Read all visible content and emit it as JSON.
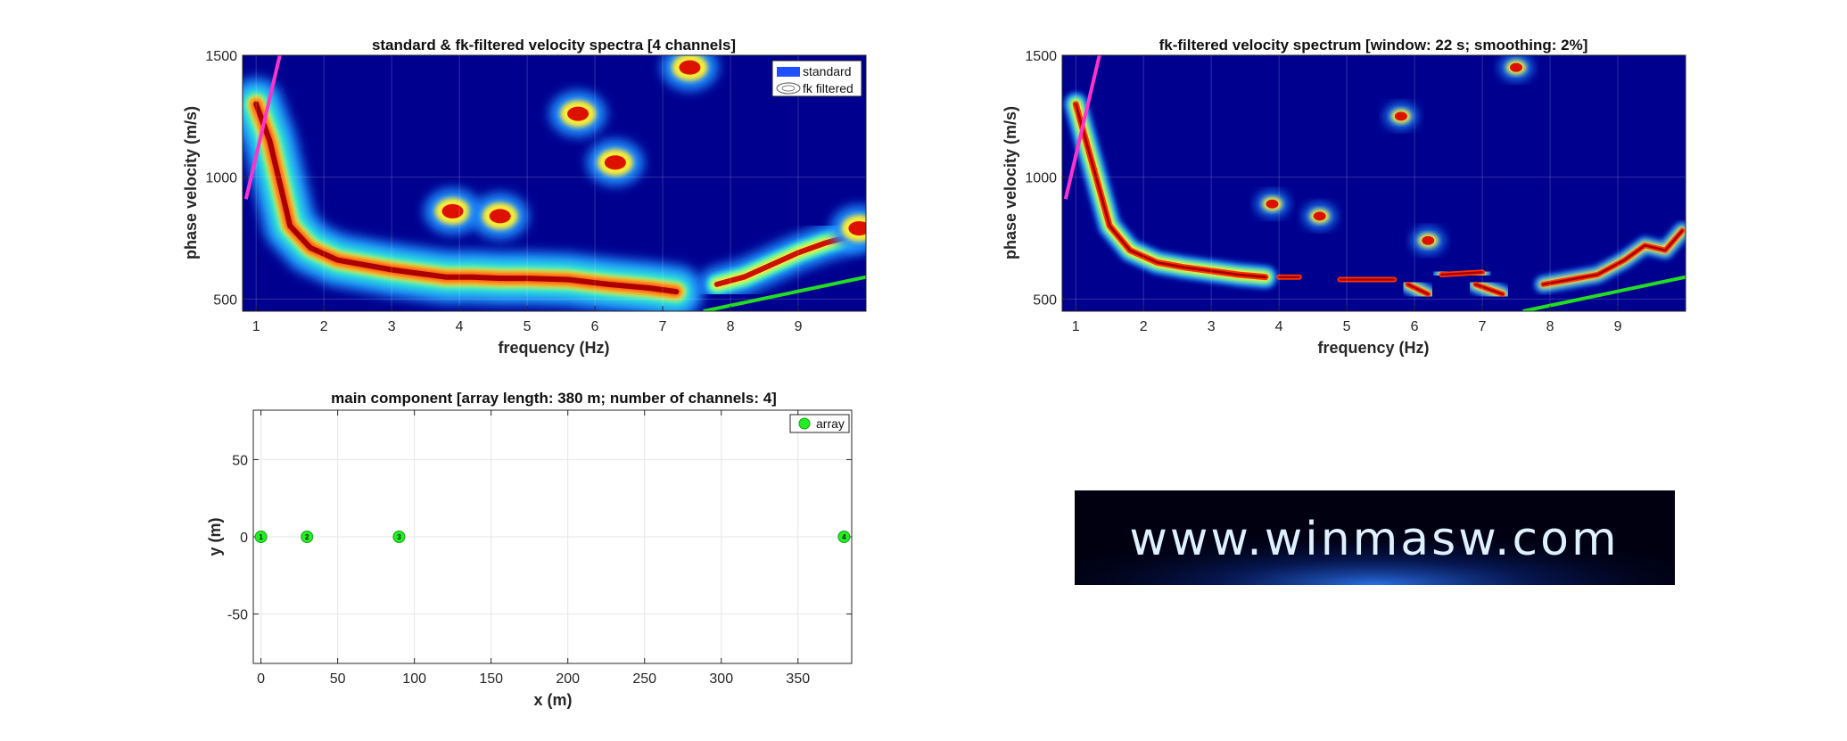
{
  "chart_data": [
    {
      "id": "spectra-standard",
      "type": "heatmap",
      "title": "standard & fk-filtered velocity spectra [4 channels]",
      "xlabel": "frequency (Hz)",
      "ylabel": "phase velocity (m/s)",
      "xlim": [
        0.8,
        10.0
      ],
      "ylim": [
        450,
        1500
      ],
      "xticks": [
        "1",
        "2",
        "3",
        "4",
        "5",
        "6",
        "7",
        "8",
        "9"
      ],
      "yticks": [
        "500",
        "1000",
        "1500"
      ],
      "grid": true,
      "legend": {
        "position": "top-right",
        "entries": [
          "standard",
          "fk filtered"
        ]
      },
      "dispersion_curve": {
        "freq": [
          1.0,
          1.2,
          1.5,
          1.8,
          2.2,
          2.6,
          3.0,
          3.4,
          3.8,
          4.2,
          4.6,
          5.0,
          5.6,
          6.2,
          6.8,
          7.2
        ],
        "velocity": [
          1300,
          1150,
          800,
          710,
          660,
          640,
          620,
          605,
          590,
          590,
          585,
          585,
          580,
          560,
          545,
          530
        ]
      },
      "higher_mode": {
        "freq": [
          7.8,
          8.2,
          8.6,
          9.0,
          9.4,
          9.8
        ],
        "velocity": [
          560,
          590,
          640,
          690,
          730,
          760
        ]
      },
      "patches": [
        {
          "freq": 3.9,
          "velocity": 860
        },
        {
          "freq": 4.6,
          "velocity": 840
        },
        {
          "freq": 5.75,
          "velocity": 1260
        },
        {
          "freq": 6.3,
          "velocity": 1060
        },
        {
          "freq": 7.4,
          "velocity": 1450
        },
        {
          "freq": 9.9,
          "velocity": 790
        }
      ],
      "lines": [
        {
          "color": "#ff33cc",
          "freq": [
            0.85,
            1.35
          ],
          "velocity": [
            910,
            1500
          ]
        },
        {
          "color": "#22dd22",
          "freq": [
            7.6,
            10.0
          ],
          "velocity": [
            450,
            590
          ]
        }
      ]
    },
    {
      "id": "spectrum-fk",
      "type": "heatmap",
      "title": "fk-filtered velocity spectrum [window: 22 s; smoothing: 2%]",
      "xlabel": "frequency (Hz)",
      "ylabel": "phase velocity (m/s)",
      "xlim": [
        0.8,
        10.0
      ],
      "ylim": [
        450,
        1500
      ],
      "xticks": [
        "1",
        "2",
        "3",
        "4",
        "5",
        "6",
        "7",
        "8",
        "9"
      ],
      "yticks": [
        "500",
        "1000",
        "1500"
      ],
      "grid": true,
      "dispersion_curve": {
        "freq": [
          1.0,
          1.2,
          1.5,
          1.8,
          2.2,
          2.6,
          3.0,
          3.4,
          3.8
        ],
        "velocity": [
          1300,
          1100,
          800,
          700,
          650,
          630,
          615,
          600,
          590
        ]
      },
      "segments": [
        {
          "freq": [
            4.0,
            4.3
          ],
          "velocity": [
            590,
            590
          ]
        },
        {
          "freq": [
            4.9,
            5.7
          ],
          "velocity": [
            580,
            580
          ]
        },
        {
          "freq": [
            5.9,
            6.2
          ],
          "velocity": [
            560,
            520
          ]
        },
        {
          "freq": [
            6.4,
            7.0
          ],
          "velocity": [
            600,
            610
          ]
        },
        {
          "freq": [
            6.9,
            7.3
          ],
          "velocity": [
            560,
            520
          ]
        }
      ],
      "higher_mode": {
        "freq": [
          7.9,
          8.3,
          8.7,
          9.1,
          9.4,
          9.7,
          9.95
        ],
        "velocity": [
          560,
          580,
          600,
          660,
          720,
          700,
          780
        ]
      },
      "patches": [
        {
          "freq": 3.9,
          "velocity": 890
        },
        {
          "freq": 4.6,
          "velocity": 840
        },
        {
          "freq": 5.8,
          "velocity": 1250
        },
        {
          "freq": 6.2,
          "velocity": 740
        },
        {
          "freq": 7.5,
          "velocity": 1450
        }
      ],
      "lines": [
        {
          "color": "#ff33cc",
          "freq": [
            0.85,
            1.35
          ],
          "velocity": [
            910,
            1500
          ]
        },
        {
          "color": "#22dd22",
          "freq": [
            7.6,
            10.0
          ],
          "velocity": [
            450,
            590
          ]
        }
      ]
    },
    {
      "id": "array-geometry",
      "type": "scatter",
      "title": "main component [array length: 380 m; number of channels: 4]",
      "xlabel": "x (m)",
      "ylabel": "y (m)",
      "xlim": [
        -5,
        385
      ],
      "ylim": [
        -82,
        82
      ],
      "xticks": [
        "0",
        "50",
        "100",
        "150",
        "200",
        "250",
        "300",
        "350"
      ],
      "yticks": [
        "-50",
        "0",
        "50"
      ],
      "grid": true,
      "legend": {
        "position": "top-right",
        "entries": [
          "array"
        ]
      },
      "series": [
        {
          "name": "array",
          "color": "#22ee22",
          "points": [
            {
              "label": "1",
              "x": 0,
              "y": 0
            },
            {
              "label": "2",
              "x": 30,
              "y": 0
            },
            {
              "label": "3",
              "x": 90,
              "y": 0
            },
            {
              "label": "4",
              "x": 380,
              "y": 0
            }
          ]
        }
      ]
    }
  ],
  "logo": {
    "text": "www.winmasw.com"
  }
}
